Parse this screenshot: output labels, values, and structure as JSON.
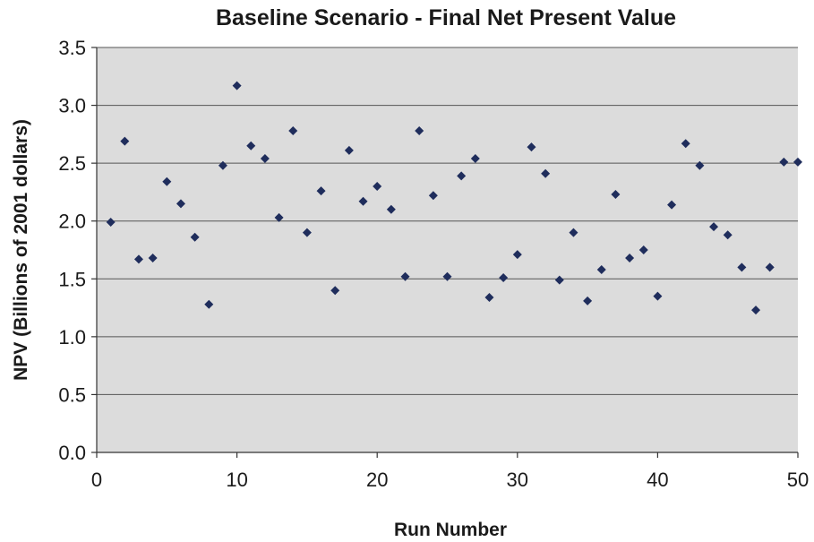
{
  "chart_data": {
    "type": "scatter",
    "title": "Baseline Scenario - Final Net Present Value",
    "xlabel": "Run Number",
    "ylabel": "NPV (Billions of 2001 dollars)",
    "xlim": [
      0,
      50
    ],
    "ylim": [
      0,
      3.5
    ],
    "x_ticks": [
      "0",
      "10",
      "20",
      "30",
      "40",
      "50"
    ],
    "y_ticks": [
      "0.0",
      "0.5",
      "1.0",
      "1.5",
      "2.0",
      "2.5",
      "3.0",
      "3.5"
    ],
    "grid": true,
    "plot_background": "#dcdcdc",
    "marker_color": "#1f2d5c",
    "marker": "diamond",
    "series": [
      {
        "x": [
          1,
          2,
          3,
          4,
          5,
          6,
          7,
          8,
          9,
          10,
          11,
          12,
          13,
          14,
          15,
          16,
          17,
          18,
          19,
          20,
          21,
          22,
          23,
          24,
          25,
          26,
          27,
          28,
          29,
          30,
          31,
          32,
          33,
          34,
          35,
          36,
          37,
          38,
          39,
          40,
          41,
          42,
          43,
          44,
          45,
          46,
          47,
          48,
          49,
          50
        ],
        "y": [
          1.99,
          2.69,
          1.67,
          1.68,
          2.34,
          2.15,
          1.86,
          1.28,
          2.48,
          3.17,
          2.65,
          2.54,
          2.03,
          2.78,
          1.9,
          2.26,
          1.4,
          2.61,
          2.17,
          2.3,
          2.1,
          1.52,
          2.78,
          2.22,
          1.52,
          2.39,
          2.54,
          1.34,
          1.51,
          1.71,
          2.64,
          2.41,
          1.49,
          1.9,
          1.31,
          1.58,
          2.23,
          1.68,
          1.75,
          1.35,
          2.14,
          2.67,
          2.48,
          1.95,
          1.88,
          1.6,
          1.23,
          1.6,
          2.51,
          2.51
        ]
      }
    ]
  }
}
